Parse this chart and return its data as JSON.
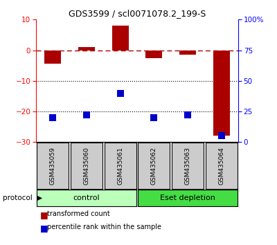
{
  "title": "GDS3599 / scl0071078.2_199-S",
  "samples": [
    "GSM435059",
    "GSM435060",
    "GSM435061",
    "GSM435062",
    "GSM435063",
    "GSM435064"
  ],
  "red_values": [
    -4.5,
    1.0,
    8.0,
    -2.5,
    -1.5,
    -28.0
  ],
  "blue_pct": [
    20,
    22,
    40,
    20,
    22,
    5
  ],
  "left_ylim": [
    -30,
    10
  ],
  "right_ylim": [
    0,
    100
  ],
  "left_yticks": [
    -30,
    -20,
    -10,
    0,
    10
  ],
  "right_yticks": [
    0,
    25,
    50,
    75,
    100
  ],
  "right_yticklabels": [
    "0",
    "25",
    "50",
    "75",
    "100%"
  ],
  "dotted_lines": [
    -10,
    -20
  ],
  "dashed_line_y": 0,
  "protocol_groups": [
    {
      "label": "control",
      "start": 0,
      "end": 3,
      "color": "#bbffbb"
    },
    {
      "label": "Eset depletion",
      "start": 3,
      "end": 6,
      "color": "#44dd44"
    }
  ],
  "bar_color": "#aa0000",
  "blue_color": "#0000cc",
  "bar_width": 0.5,
  "bg_color": "#ffffff",
  "legend_red_label": "transformed count",
  "legend_blue_label": "percentile rank within the sample",
  "title_fontsize": 9
}
